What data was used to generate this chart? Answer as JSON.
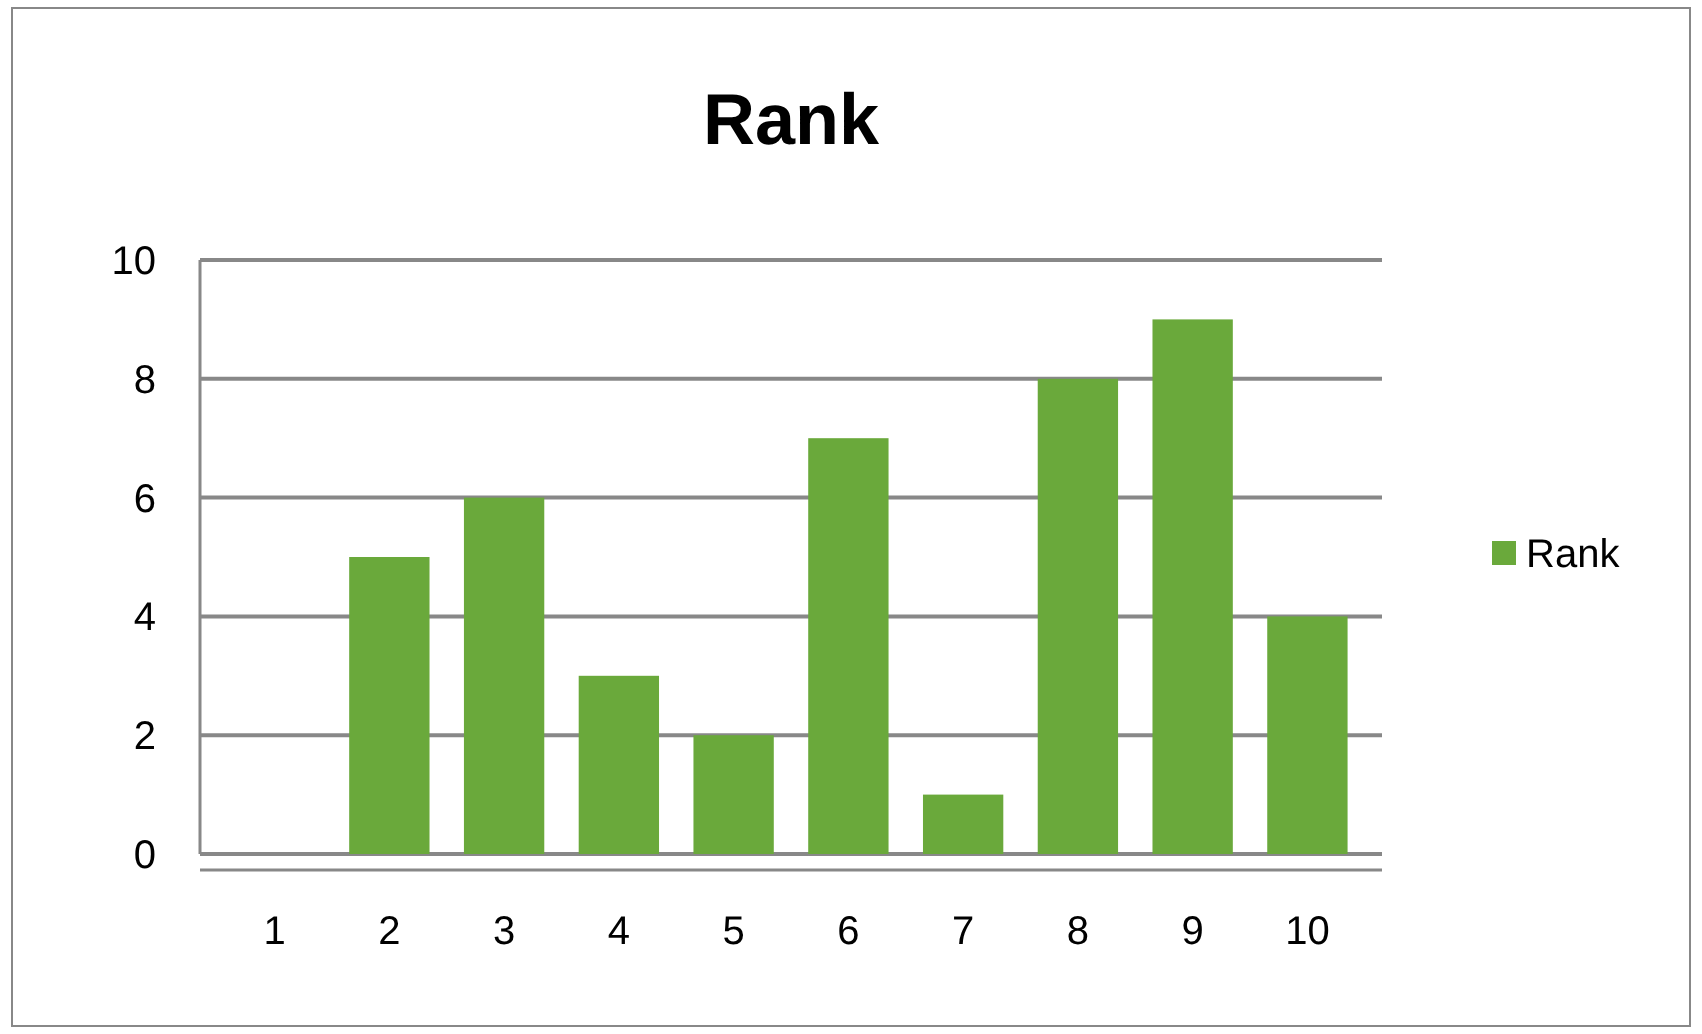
{
  "chart_data": {
    "type": "bar",
    "title": "Rank",
    "categories": [
      "1",
      "2",
      "3",
      "4",
      "5",
      "6",
      "7",
      "8",
      "9",
      "10"
    ],
    "series": [
      {
        "name": "Rank",
        "color": "#6aa93b",
        "values": [
          0,
          5,
          6,
          3,
          2,
          7,
          1,
          8,
          9,
          4
        ]
      }
    ],
    "ylim": [
      0,
      10
    ],
    "yticks": [
      0,
      2,
      4,
      6,
      8,
      10
    ],
    "grid": "y",
    "legend": "right"
  }
}
